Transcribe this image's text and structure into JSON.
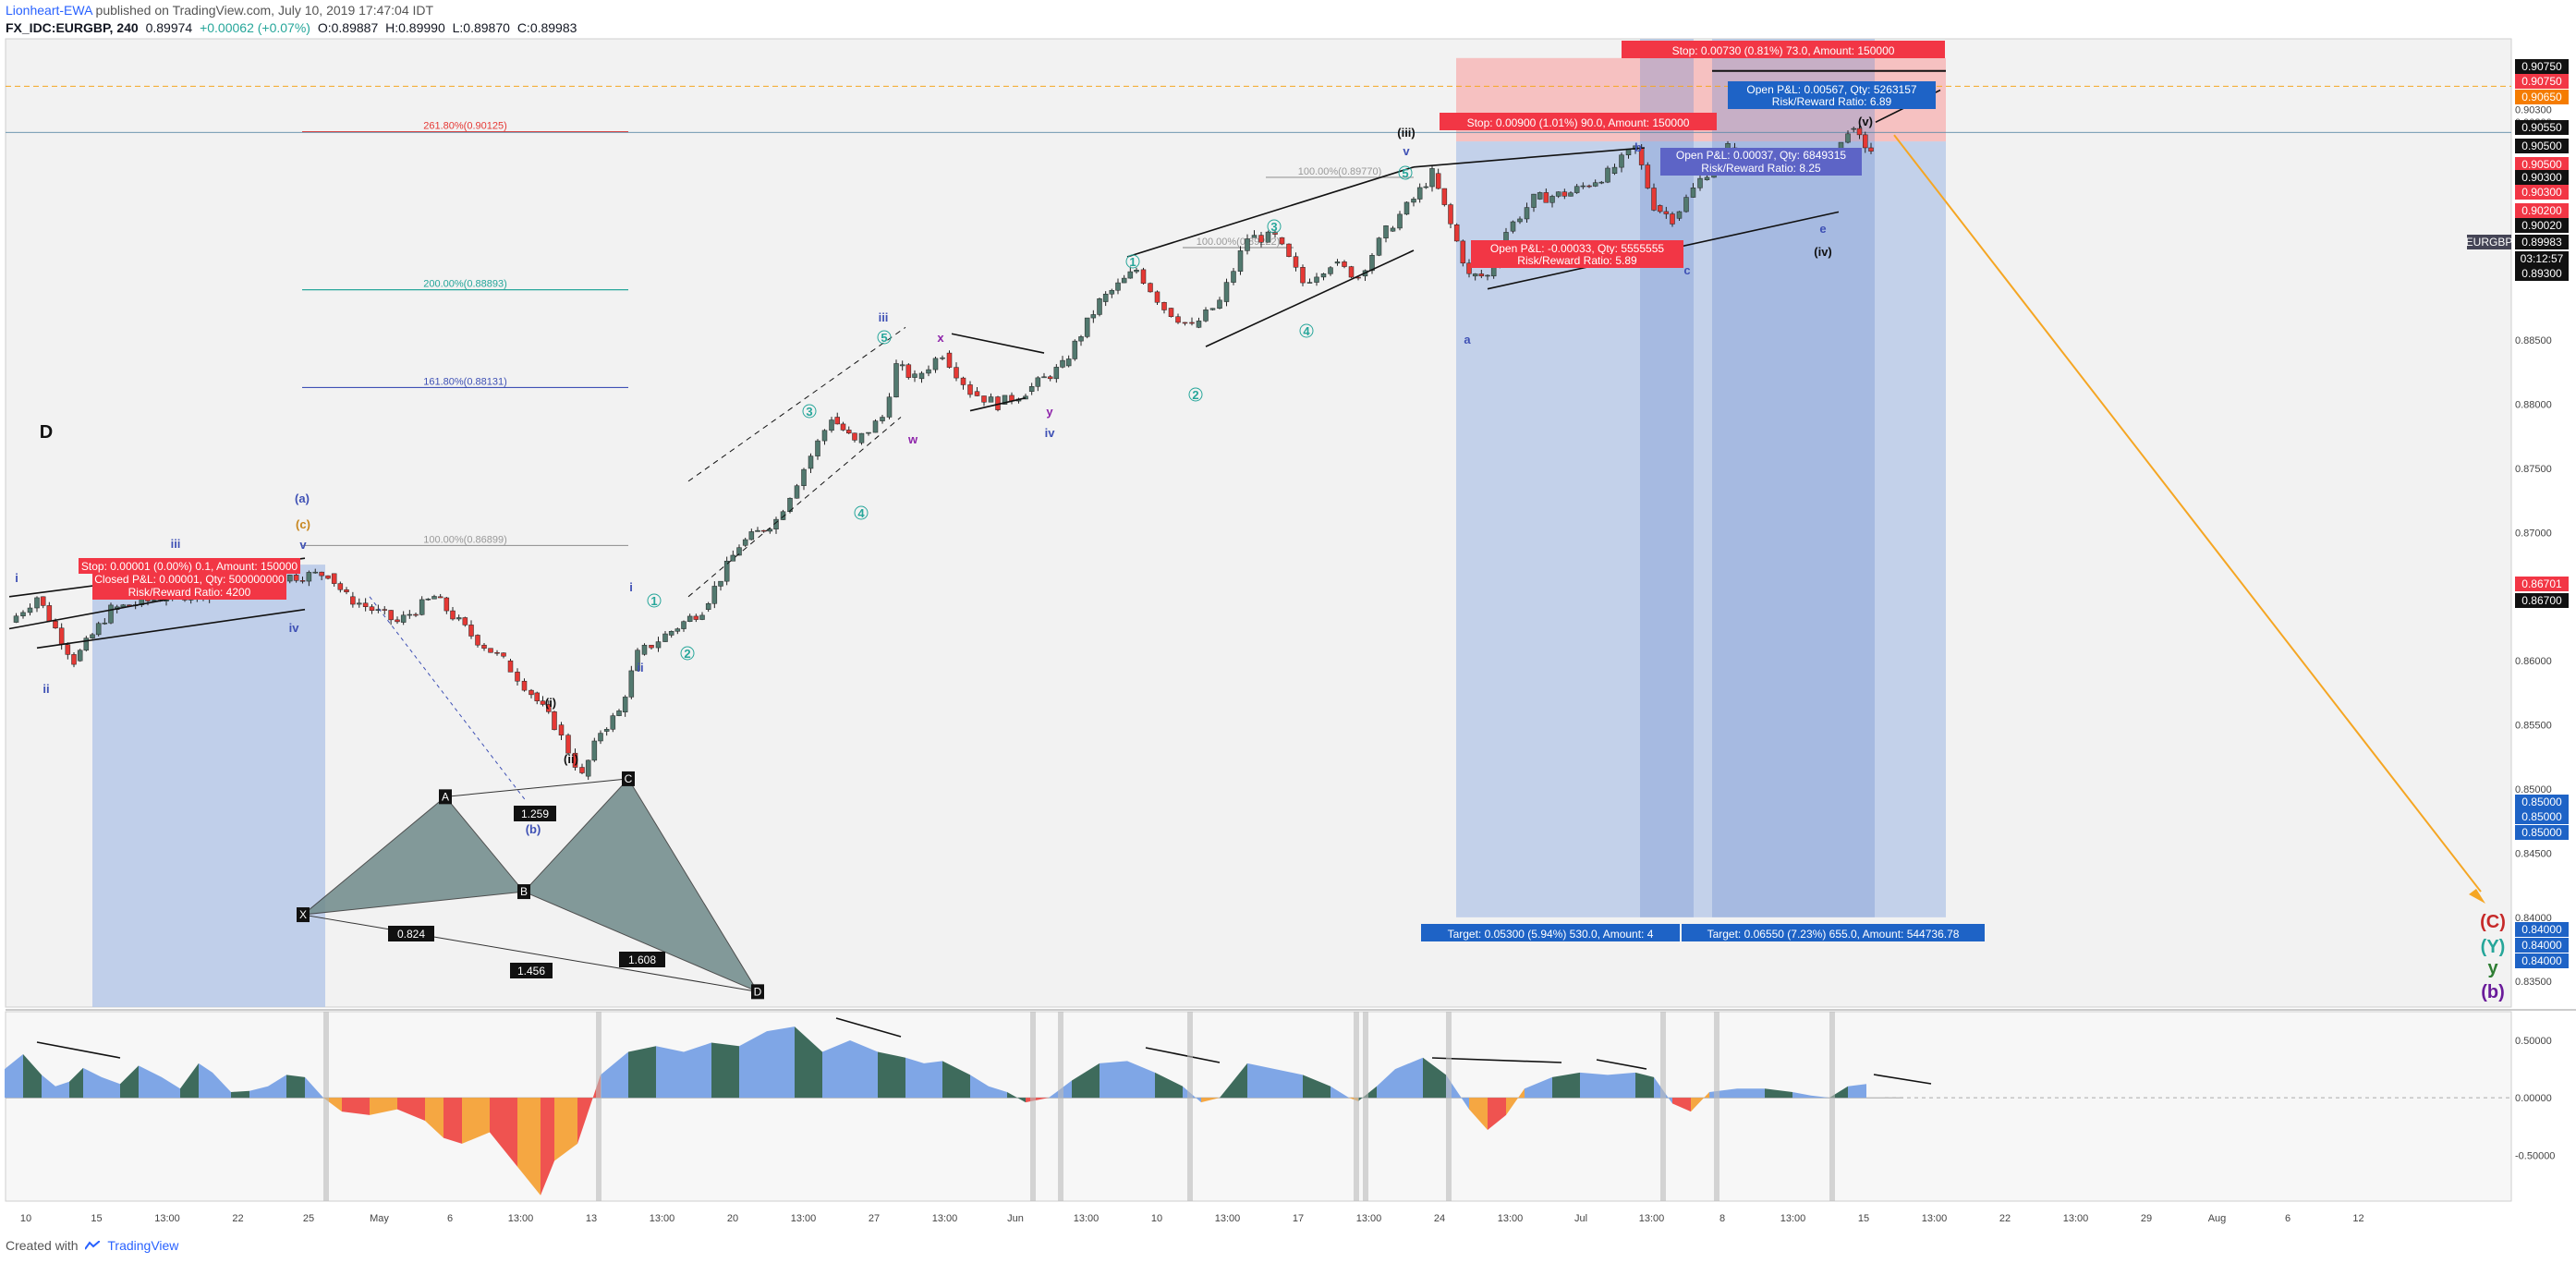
{
  "header": {
    "author": "Lionheart-EWA",
    "published_text": "published on TradingView.com, July 10, 2019 17:47:04 IDT",
    "symbol": "FX_IDC:EURGBP, 240",
    "last": "0.89974",
    "change": "+0.00062 (+0.07%)",
    "open": "O:0.89887",
    "high": "H:0.89990",
    "low": "L:0.89870",
    "close": "C:0.89983"
  },
  "footer": {
    "created_with": "Created with",
    "brand": "TradingView"
  },
  "colors": {
    "up": "#52796f",
    "down": "#e53935",
    "accent": "#2962ff",
    "fib_261": "#e53935",
    "fib_200": "#26a69a",
    "fib_161": "#3f51b5",
    "profit_zone": "#b3c6e7",
    "loss_zone": "#f6b4b4",
    "projection": "#f5a623",
    "osc_pos_blue": "#7fa6e6",
    "osc_pos_green": "#3e6b5c",
    "osc_neg_red": "#ef5350",
    "osc_neg_orange": "#f5a742"
  },
  "chart_data": [
    {
      "type": "candlestick",
      "pane": "main",
      "ylim": [
        0.833,
        0.9085
      ],
      "y_ticks": [
        "0.90500",
        "0.90300",
        "0.90200",
        "0.90000",
        "0.89500",
        "0.89000",
        "0.88500",
        "0.88000",
        "0.87500",
        "0.87000",
        "0.86500",
        "0.86000",
        "0.85500",
        "0.85000",
        "0.84500",
        "0.84000",
        "0.83500"
      ],
      "x_ticks": [
        "10",
        "15",
        "13:00",
        "22",
        "25",
        "May",
        "6",
        "13:00",
        "13",
        "13:00",
        "20",
        "13:00",
        "27",
        "13:00",
        "Jun",
        "13:00",
        "10",
        "13:00",
        "17",
        "13:00",
        "24",
        "13:00",
        "Jul",
        "13:00",
        "8",
        "13:00",
        "15",
        "13:00",
        "22",
        "13:00",
        "29",
        "Aug",
        "6",
        "12"
      ],
      "price_path": [
        [
          10,
          0.863
        ],
        [
          40,
          0.865
        ],
        [
          80,
          0.86
        ],
        [
          120,
          0.864
        ],
        [
          180,
          0.865
        ],
        [
          240,
          0.8655
        ],
        [
          300,
          0.8665
        ],
        [
          355,
          0.8668
        ],
        [
          375,
          0.865
        ],
        [
          430,
          0.863
        ],
        [
          470,
          0.865
        ],
        [
          510,
          0.862
        ],
        [
          545,
          0.86
        ],
        [
          575,
          0.8575
        ],
        [
          600,
          0.855
        ],
        [
          630,
          0.851
        ],
        [
          650,
          0.8545
        ],
        [
          670,
          0.856
        ],
        [
          690,
          0.8605
        ],
        [
          720,
          0.862
        ],
        [
          760,
          0.864
        ],
        [
          800,
          0.869
        ],
        [
          840,
          0.871
        ],
        [
          870,
          0.875
        ],
        [
          900,
          0.879
        ],
        [
          925,
          0.877
        ],
        [
          955,
          0.879
        ],
        [
          970,
          0.883
        ],
        [
          990,
          0.882
        ],
        [
          1020,
          0.884
        ],
        [
          1050,
          0.881
        ],
        [
          1080,
          0.88
        ],
        [
          1110,
          0.881
        ],
        [
          1150,
          0.883
        ],
        [
          1190,
          0.888
        ],
        [
          1230,
          0.8905
        ],
        [
          1260,
          0.8875
        ],
        [
          1290,
          0.886
        ],
        [
          1320,
          0.888
        ],
        [
          1350,
          0.893
        ],
        [
          1380,
          0.893
        ],
        [
          1410,
          0.8895
        ],
        [
          1440,
          0.891
        ],
        [
          1470,
          0.89
        ],
        [
          1500,
          0.8935
        ],
        [
          1530,
          0.896
        ],
        [
          1550,
          0.898
        ],
        [
          1570,
          0.894
        ],
        [
          1590,
          0.89
        ],
        [
          1610,
          0.89
        ],
        [
          1630,
          0.8935
        ],
        [
          1660,
          0.896
        ],
        [
          1700,
          0.8965
        ],
        [
          1740,
          0.898
        ],
        [
          1770,
          0.9
        ],
        [
          1790,
          0.8955
        ],
        [
          1810,
          0.8945
        ],
        [
          1840,
          0.8975
        ],
        [
          1870,
          0.9
        ],
        [
          1900,
          0.899
        ],
        [
          1930,
          0.899
        ],
        [
          1960,
          0.8985
        ],
        [
          1985,
          0.899
        ],
        [
          2000,
          0.9015
        ],
        [
          2025,
          0.8998
        ]
      ],
      "fib_levels": [
        {
          "label": "261.80%(0.90125)",
          "value": 0.90125
        },
        {
          "label": "200.00%(0.88893)",
          "value": 0.88893
        },
        {
          "label": "161.80%(0.88131)",
          "value": 0.88131
        },
        {
          "label": "100.00%(0.86899)",
          "value": 0.86899
        },
        {
          "label": "100.00%(0.89770)",
          "value": 0.8977
        },
        {
          "label": "100.00%(0.89222)",
          "value": 0.89222
        }
      ],
      "price_badges": [
        {
          "text": "0.90750",
          "kind": "dark"
        },
        {
          "text": "0.90750",
          "kind": "red"
        },
        {
          "text": "0.90650",
          "kind": "orange"
        },
        {
          "text": "0.90550",
          "kind": "dark"
        },
        {
          "text": "0.90500",
          "kind": "dark"
        },
        {
          "text": "0.90500",
          "kind": "red"
        },
        {
          "text": "0.90300",
          "kind": "dark"
        },
        {
          "text": "0.90300",
          "kind": "red"
        },
        {
          "text": "0.90200",
          "kind": "red"
        },
        {
          "text": "0.90020",
          "kind": "dark"
        },
        {
          "text": "0.89983",
          "kind": "dark",
          "tag": "EURGBP"
        },
        {
          "text": "03:12:57",
          "kind": "dark"
        },
        {
          "text": "0.89300",
          "kind": "dark"
        },
        {
          "text": "0.86701",
          "kind": "red"
        },
        {
          "text": "0.86700",
          "kind": "dark"
        },
        {
          "text": "0.85000",
          "kind": "blue"
        },
        {
          "text": "0.85000",
          "kind": "blue"
        },
        {
          "text": "0.85000",
          "kind": "blue"
        },
        {
          "text": "0.84000",
          "kind": "blue"
        },
        {
          "text": "0.84000",
          "kind": "blue"
        },
        {
          "text": "0.84000",
          "kind": "blue"
        }
      ],
      "position_labels": {
        "stop_top": "Stop: 0.00730 (0.81%) 73.0, Amount: 150000",
        "open_pl_top": "Open P&L: 0.00567, Qty: 5263157",
        "rr_top": "Risk/Reward Ratio: 6.89",
        "stop_mid": "Stop: 0.00900 (1.01%) 90.0, Amount: 150000",
        "open_pl_mid": "Open P&L: 0.00037, Qty: 6849315",
        "rr_mid": "Risk/Reward Ratio: 8.25",
        "open_pl_neg": "Open P&L: -0.00033, Qty: 5555555",
        "rr_neg": "Risk/Reward Ratio: 5.89",
        "stop_left": "Stop: 0.00001 (0.00%) 0.1, Amount: 150000",
        "closed_pl_left": "Closed P&L: 0.00001, Qty: 500000000",
        "rr_left": "Risk/Reward Ratio: 4200",
        "target_a": "Target: 0.05300 (5.94%) 530.0, Amount: 4",
        "target_b": "Target: 0.06550 (7.23%) 655.0, Amount: 544736.78"
      },
      "harmonic_labels": {
        "X": "X",
        "A": "A",
        "B": "B",
        "C": "C",
        "D": "D",
        "xb": "1.456",
        "ab": "0.824",
        "bc": "1.608",
        "cd": "1.259"
      },
      "wave_labels": [
        "i",
        "ii",
        "iii",
        "iv",
        "v",
        "(a)",
        "(c)",
        "(b)",
        "(i)",
        "(ii)",
        "i",
        "ii",
        "1",
        "2",
        "3",
        "4",
        "5",
        "iii",
        "x",
        "w",
        "y",
        "iv",
        "1",
        "2",
        "3",
        "4",
        "5",
        "(iii)",
        "v",
        "a",
        "b",
        "c",
        "e",
        "(iv)",
        "(v)",
        "(C)",
        "(Y)",
        "y",
        "(b)",
        "D"
      ]
    },
    {
      "type": "area",
      "pane": "oscillator",
      "ylim": [
        -0.9,
        0.75
      ],
      "y_ticks": [
        "0.50000",
        "0.00000",
        "-0.50000"
      ],
      "path": [
        [
          5,
          0.25
        ],
        [
          25,
          0.38
        ],
        [
          45,
          0.2
        ],
        [
          60,
          0.1
        ],
        [
          75,
          0.14
        ],
        [
          90,
          0.26
        ],
        [
          110,
          0.18
        ],
        [
          130,
          0.12
        ],
        [
          150,
          0.28
        ],
        [
          175,
          0.18
        ],
        [
          195,
          0.08
        ],
        [
          215,
          0.3
        ],
        [
          230,
          0.22
        ],
        [
          250,
          0.05
        ],
        [
          270,
          0.06
        ],
        [
          290,
          0.1
        ],
        [
          310,
          0.2
        ],
        [
          330,
          0.18
        ],
        [
          350,
          0.0
        ],
        [
          370,
          -0.12
        ],
        [
          400,
          -0.15
        ],
        [
          430,
          -0.1
        ],
        [
          460,
          -0.2
        ],
        [
          480,
          -0.35
        ],
        [
          500,
          -0.4
        ],
        [
          530,
          -0.3
        ],
        [
          560,
          -0.6
        ],
        [
          585,
          -0.85
        ],
        [
          600,
          -0.55
        ],
        [
          625,
          -0.4
        ],
        [
          650,
          0.2
        ],
        [
          680,
          0.4
        ],
        [
          710,
          0.45
        ],
        [
          740,
          0.4
        ],
        [
          770,
          0.48
        ],
        [
          800,
          0.45
        ],
        [
          830,
          0.58
        ],
        [
          860,
          0.62
        ],
        [
          890,
          0.4
        ],
        [
          920,
          0.5
        ],
        [
          950,
          0.4
        ],
        [
          980,
          0.35
        ],
        [
          1000,
          0.3
        ],
        [
          1020,
          0.32
        ],
        [
          1050,
          0.2
        ],
        [
          1070,
          0.1
        ],
        [
          1090,
          0.05
        ],
        [
          1110,
          -0.04
        ],
        [
          1135,
          0.0
        ],
        [
          1160,
          0.15
        ],
        [
          1190,
          0.3
        ],
        [
          1220,
          0.32
        ],
        [
          1250,
          0.22
        ],
        [
          1280,
          0.1
        ],
        [
          1300,
          -0.04
        ],
        [
          1320,
          0.0
        ],
        [
          1350,
          0.3
        ],
        [
          1380,
          0.25
        ],
        [
          1410,
          0.2
        ],
        [
          1440,
          0.1
        ],
        [
          1460,
          0.0
        ],
        [
          1470,
          -0.03
        ],
        [
          1490,
          0.1
        ],
        [
          1510,
          0.25
        ],
        [
          1540,
          0.35
        ],
        [
          1565,
          0.2
        ],
        [
          1590,
          -0.1
        ],
        [
          1610,
          -0.28
        ],
        [
          1630,
          -0.15
        ],
        [
          1650,
          0.08
        ],
        [
          1680,
          0.18
        ],
        [
          1710,
          0.22
        ],
        [
          1740,
          0.2
        ],
        [
          1770,
          0.22
        ],
        [
          1790,
          0.18
        ],
        [
          1810,
          -0.05
        ],
        [
          1830,
          -0.12
        ],
        [
          1850,
          0.05
        ],
        [
          1880,
          0.08
        ],
        [
          1910,
          0.08
        ],
        [
          1940,
          0.05
        ],
        [
          1960,
          0.02
        ],
        [
          1980,
          0.0
        ],
        [
          2000,
          0.1
        ],
        [
          2020,
          0.12
        ]
      ]
    }
  ]
}
